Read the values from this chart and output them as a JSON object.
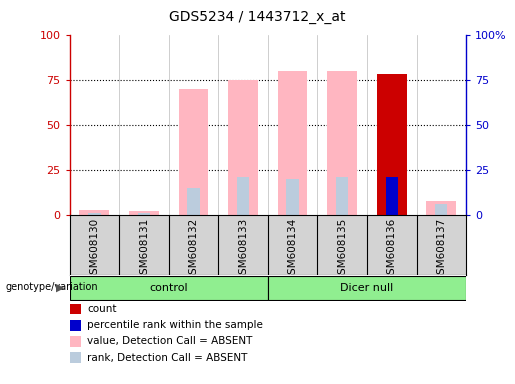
{
  "title": "GDS5234 / 1443712_x_at",
  "samples": [
    "GSM608130",
    "GSM608131",
    "GSM608132",
    "GSM608133",
    "GSM608134",
    "GSM608135",
    "GSM608136",
    "GSM608137"
  ],
  "pink_bar_heights": [
    3,
    2,
    70,
    75,
    80,
    80,
    0,
    8
  ],
  "light_blue_bar_heights": [
    1,
    1,
    15,
    21,
    20,
    21,
    0,
    6
  ],
  "red_bar_heights": [
    0,
    0,
    0,
    0,
    0,
    0,
    78,
    0
  ],
  "blue_bar_heights": [
    0,
    0,
    0,
    0,
    0,
    0,
    21,
    0
  ],
  "ylim": [
    0,
    100
  ],
  "yticks": [
    0,
    25,
    50,
    75,
    100
  ],
  "ytick_labels_left": [
    "0",
    "25",
    "50",
    "75",
    "100"
  ],
  "ytick_labels_right": [
    "0",
    "25",
    "50",
    "75",
    "100%"
  ],
  "grid_values": [
    25,
    50,
    75
  ],
  "pink_color": "#FFB6C1",
  "light_blue_color": "#BBCCDD",
  "red_color": "#CC0000",
  "blue_color": "#0000CC",
  "left_axis_color": "#CC0000",
  "right_axis_color": "#0000CC",
  "sample_bg_color": "#D3D3D3",
  "plot_bg_color": "#FFFFFF",
  "group_color": "#90EE90",
  "genotype_label": "genotype/variation",
  "control_label": "control",
  "dicernull_label": "Dicer null",
  "legend_items": [
    {
      "label": "count",
      "color": "#CC0000"
    },
    {
      "label": "percentile rank within the sample",
      "color": "#0000CC"
    },
    {
      "label": "value, Detection Call = ABSENT",
      "color": "#FFB6C1"
    },
    {
      "label": "rank, Detection Call = ABSENT",
      "color": "#BBCCDD"
    }
  ]
}
